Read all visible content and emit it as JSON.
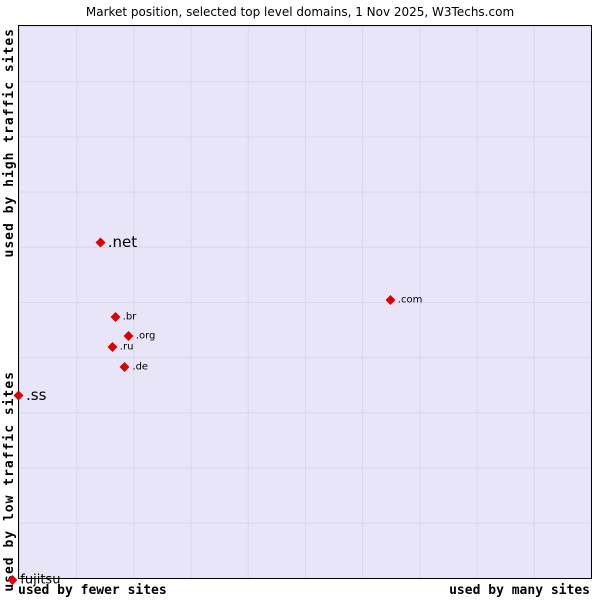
{
  "title": "Market position, selected top level domains, 1 Nov 2025, W3Techs.com",
  "axes": {
    "left_top": "used by high traffic sites",
    "left_bottom": "used by low traffic sites",
    "bottom_left": "used by fewer sites",
    "bottom_right": "used by many sites"
  },
  "colors": {
    "plot_bg": "#e7e5f7",
    "grid": "#d9d6ee",
    "point": "#dd0000",
    "text": "#000000"
  },
  "chart_data": {
    "type": "scatter",
    "title": "Market position, selected top level domains, 1 Nov 2025, W3Techs.com",
    "xlabel": "sites using the domain (fewer sites → many sites)",
    "ylabel": "traffic of sites (low traffic → high traffic)",
    "grid": true,
    "legend_position": "none",
    "points": [
      {
        "label": ".net",
        "x_pct": 14.3,
        "y_pct": 39.2,
        "size": "large"
      },
      {
        "label": ".com",
        "x_pct": 65.0,
        "y_pct": 49.7,
        "size": "small"
      },
      {
        "label": ".br",
        "x_pct": 16.9,
        "y_pct": 52.8,
        "size": "small"
      },
      {
        "label": ".org",
        "x_pct": 19.2,
        "y_pct": 56.2,
        "size": "small"
      },
      {
        "label": ".ru",
        "x_pct": 16.4,
        "y_pct": 58.2,
        "size": "small"
      },
      {
        "label": ".de",
        "x_pct": 18.6,
        "y_pct": 61.8,
        "size": "small"
      },
      {
        "label": ".ss",
        "x_pct": 0.0,
        "y_pct": 66.9,
        "size": "large"
      },
      {
        "label": "fujitsu",
        "x_pct": -1.0,
        "y_pct": 100.3,
        "size": "medium"
      }
    ]
  }
}
